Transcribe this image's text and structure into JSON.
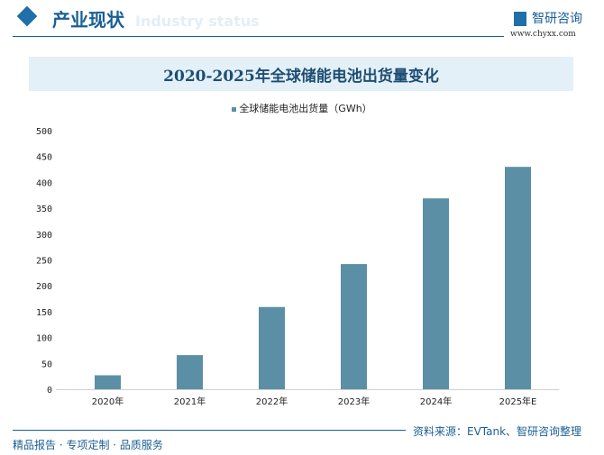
{
  "header": {
    "section_title": "产业现状",
    "section_subtitle": "Industry status",
    "logo_text": "智研咨询",
    "url": "www.chyxx.com"
  },
  "chart_data": {
    "type": "bar",
    "title": "2020-2025年全球储能电池出货量变化",
    "categories": [
      "2020年",
      "2021年",
      "2022年",
      "2023年",
      "2024年",
      "2025年E"
    ],
    "series": [
      {
        "name": "全球储能电池出货量（GWh）",
        "values": [
          27,
          66,
          159,
          242,
          369,
          430
        ],
        "color": "#5b8fa6"
      }
    ],
    "ylim": [
      0,
      500
    ],
    "yticks": [
      "0",
      "50",
      "100",
      "150",
      "200",
      "250",
      "300",
      "350",
      "400",
      "450",
      "500"
    ],
    "grid": false,
    "legend": "top"
  },
  "footer": {
    "source": "资料来源：EVTank、智研咨询整理",
    "slogan": "精品报告 · 专项定制 · 品质服务"
  }
}
